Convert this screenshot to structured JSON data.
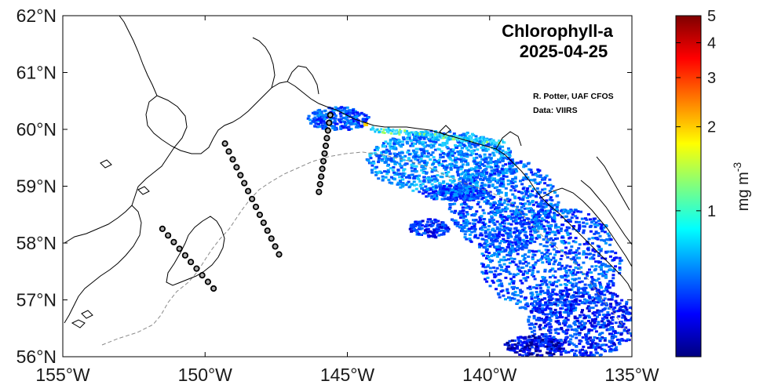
{
  "map": {
    "title": "Chlorophyll-a",
    "date": "2025-04-25",
    "credit": "R. Potter, UAF CFOS",
    "source": "Data: VIIRS",
    "lon_labels": [
      "155°W",
      "150°W",
      "145°W",
      "140°W",
      "135°W"
    ],
    "lat_labels": [
      "62°N",
      "61°N",
      "60°N",
      "59°N",
      "58°N",
      "57°N",
      "56°N"
    ],
    "lon_range": [
      -155,
      -135
    ],
    "lat_range": [
      56,
      62
    ]
  },
  "colorbar": {
    "label_main": "mg m",
    "label_exp": "-3",
    "ticks": [
      {
        "label": "5",
        "value": 5
      },
      {
        "label": "4",
        "value": 4
      },
      {
        "label": "3",
        "value": 3
      },
      {
        "label": "2",
        "value": 2
      },
      {
        "label": "1",
        "value": 1
      }
    ],
    "range": [
      0.3,
      5
    ],
    "scale": "log",
    "colors": [
      "#00007f",
      "#0000ff",
      "#007fff",
      "#00ffff",
      "#7fff7f",
      "#ffff00",
      "#ff7f00",
      "#ff0000",
      "#7f0000"
    ]
  },
  "stations": {
    "lines": [
      {
        "start": [
          -151.5,
          58.25
        ],
        "end": [
          -149.7,
          57.2
        ],
        "count": 10
      },
      {
        "start": [
          -149.3,
          59.75
        ],
        "end": [
          -147.4,
          57.8
        ],
        "count": 15
      },
      {
        "start": [
          -145.6,
          60.25
        ],
        "end": [
          -146.0,
          58.9
        ],
        "count": 11
      }
    ]
  }
}
